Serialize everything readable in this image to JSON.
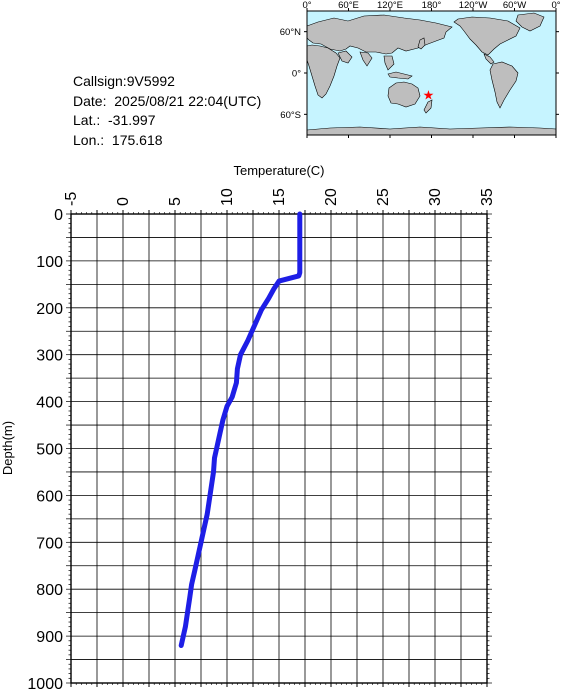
{
  "station": {
    "callsign": "Callsign:9V5992",
    "date": "Date:  2025/08/21 22:04(UTC)",
    "lat": "Lat.:  -31.997",
    "lon": "Lon.:  175.618"
  },
  "map": {
    "lon_ticks": [
      "0°",
      "60°E",
      "120°E",
      "180°",
      "120°W",
      "60°W",
      "0°"
    ],
    "lat_ticks": [
      "60°N",
      "0°",
      "60°S"
    ],
    "marker": {
      "lon": 175.618,
      "lat": -31.997,
      "symbol": "★"
    },
    "colors": {
      "ocean": "#c6f4ff",
      "land": "#bebebe",
      "marker": "#ff0000"
    }
  },
  "chart_data": {
    "type": "line",
    "xlabel": "Temperature(C)",
    "ylabel": "Depth(m)",
    "xlim": [
      -5,
      35
    ],
    "ylim": [
      0,
      1000
    ],
    "y_inverted": true,
    "x_axis_position": "top",
    "x_ticks": [
      "-5",
      "0",
      "5",
      "10",
      "15",
      "20",
      "25",
      "30",
      "35"
    ],
    "y_ticks": [
      "0",
      "100",
      "200",
      "300",
      "400",
      "500",
      "600",
      "700",
      "800",
      "900",
      "1000"
    ],
    "grid": true,
    "series_color": "#1e1ee6",
    "series": [
      {
        "x": [
          17.0,
          17.0,
          17.0,
          16.9,
          16.2,
          15.0,
          14.5,
          14.0,
          13.3,
          12.6,
          12.0,
          11.3,
          11.0,
          10.9,
          10.5,
          10.0,
          9.6,
          9.3,
          9.0,
          8.8,
          8.7,
          8.5,
          8.3,
          8.1,
          7.8,
          7.5,
          7.2,
          6.9,
          6.6,
          6.4,
          6.2,
          6.0,
          5.8,
          5.6
        ],
        "y": [
          0,
          50,
          125,
          132,
          136,
          143,
          160,
          180,
          205,
          240,
          270,
          300,
          330,
          360,
          390,
          410,
          440,
          470,
          500,
          520,
          550,
          580,
          610,
          640,
          670,
          700,
          730,
          760,
          790,
          820,
          850,
          880,
          900,
          920
        ]
      }
    ]
  }
}
